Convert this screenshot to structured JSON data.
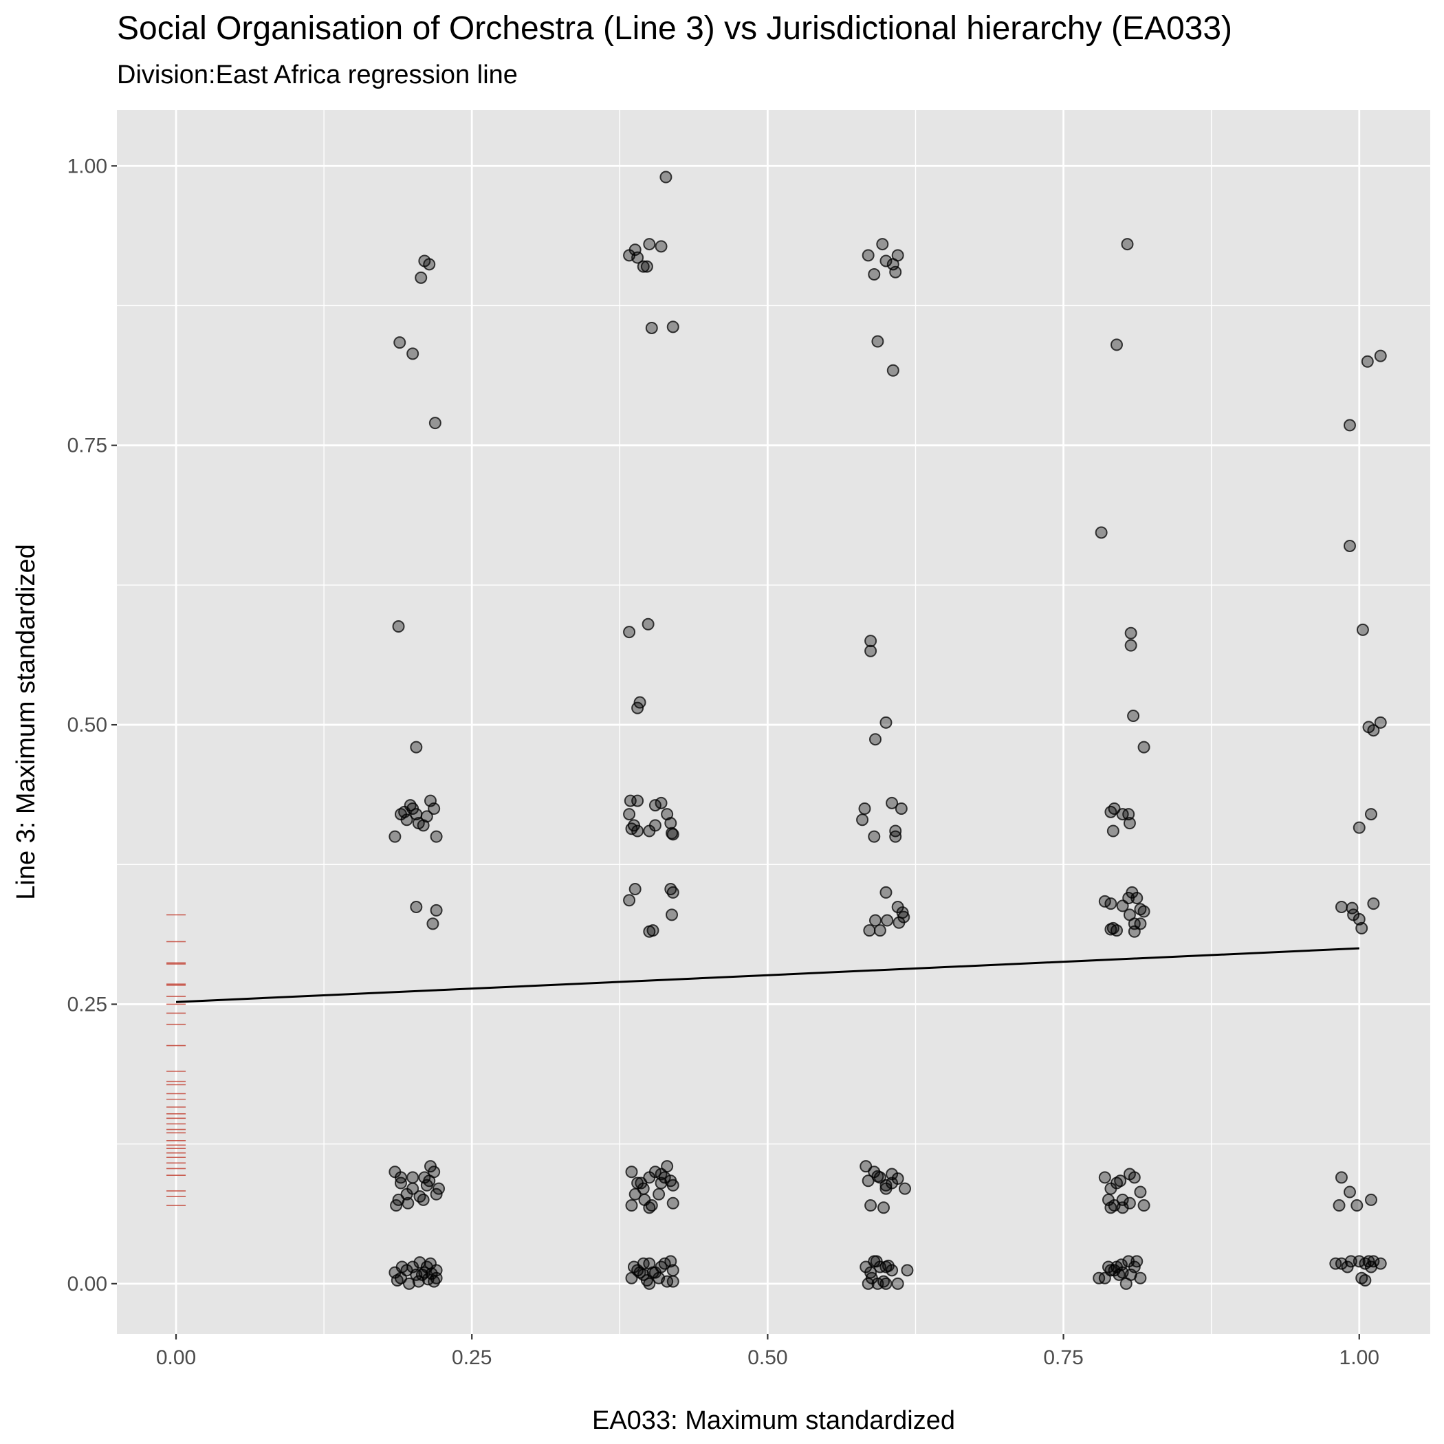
{
  "chart_data": {
    "type": "scatter",
    "title": "Social Organisation of Orchestra (Line 3) vs Jurisdictional hierarchy (EA033)",
    "subtitle": "Division:East Africa regression line",
    "xlabel": "EA033: Maximum standardized",
    "ylabel": "Line 3: Maximum standardized",
    "xlim": [
      -0.05,
      1.06
    ],
    "ylim": [
      -0.045,
      1.05
    ],
    "x_ticks": [
      0,
      0.25,
      0.5,
      0.75,
      1
    ],
    "x_tick_labels": [
      "0.00",
      "0.25",
      "0.50",
      "0.75",
      "1.00"
    ],
    "y_ticks": [
      0,
      0.25,
      0.5,
      0.75,
      1
    ],
    "y_tick_labels": [
      "0.00",
      "0.25",
      "0.50",
      "0.75",
      "1.00"
    ],
    "grid": true,
    "colors": {
      "panel": "#e5e5e5",
      "grid": "#ffffff",
      "points": "#000000",
      "regression": "#000000",
      "rug": "#c0392b"
    },
    "regression_line": {
      "x": [
        0,
        1
      ],
      "y": [
        0.252,
        0.3
      ]
    },
    "rug_y": [
      0.33,
      0.306,
      0.287,
      0.286,
      0.268,
      0.267,
      0.257,
      0.25,
      0.242,
      0.232,
      0.213,
      0.19,
      0.181,
      0.178,
      0.17,
      0.165,
      0.158,
      0.152,
      0.148,
      0.143,
      0.138,
      0.135,
      0.128,
      0.124,
      0.121,
      0.117,
      0.113,
      0.108,
      0.103,
      0.097,
      0.083,
      0.078,
      0.07
    ],
    "points": [
      [
        0.21,
        0.915
      ],
      [
        0.214,
        0.912
      ],
      [
        0.207,
        0.9
      ],
      [
        0.189,
        0.842
      ],
      [
        0.2,
        0.832
      ],
      [
        0.219,
        0.77
      ],
      [
        0.188,
        0.588
      ],
      [
        0.203,
        0.48
      ],
      [
        0.19,
        0.42
      ],
      [
        0.198,
        0.428
      ],
      [
        0.203,
        0.42
      ],
      [
        0.209,
        0.41
      ],
      [
        0.215,
        0.432
      ],
      [
        0.218,
        0.425
      ],
      [
        0.185,
        0.4
      ],
      [
        0.195,
        0.415
      ],
      [
        0.205,
        0.412
      ],
      [
        0.212,
        0.418
      ],
      [
        0.22,
        0.4
      ],
      [
        0.2,
        0.425
      ],
      [
        0.193,
        0.422
      ],
      [
        0.203,
        0.337
      ],
      [
        0.22,
        0.334
      ],
      [
        0.217,
        0.322
      ],
      [
        0.185,
        0.1
      ],
      [
        0.19,
        0.09
      ],
      [
        0.2,
        0.085
      ],
      [
        0.21,
        0.095
      ],
      [
        0.215,
        0.105
      ],
      [
        0.22,
        0.08
      ],
      [
        0.188,
        0.075
      ],
      [
        0.196,
        0.072
      ],
      [
        0.206,
        0.078
      ],
      [
        0.212,
        0.088
      ],
      [
        0.218,
        0.1
      ],
      [
        0.186,
        0.07
      ],
      [
        0.2,
        0.095
      ],
      [
        0.209,
        0.075
      ],
      [
        0.214,
        0.092
      ],
      [
        0.222,
        0.085
      ],
      [
        0.195,
        0.08
      ],
      [
        0.19,
        0.095
      ],
      [
        0.185,
        0.01
      ],
      [
        0.19,
        0.005
      ],
      [
        0.2,
        0.015
      ],
      [
        0.205,
        0.002
      ],
      [
        0.21,
        0.01
      ],
      [
        0.215,
        0.018
      ],
      [
        0.22,
        0.005
      ],
      [
        0.187,
        0.003
      ],
      [
        0.195,
        0.012
      ],
      [
        0.208,
        0.008
      ],
      [
        0.212,
        0.015
      ],
      [
        0.218,
        0.002
      ],
      [
        0.203,
        0.008
      ],
      [
        0.197,
        0.0
      ],
      [
        0.213,
        0.004
      ],
      [
        0.22,
        0.012
      ],
      [
        0.206,
        0.019
      ],
      [
        0.216,
        0.009
      ],
      [
        0.191,
        0.015
      ],
      [
        0.414,
        0.99
      ],
      [
        0.4,
        0.93
      ],
      [
        0.41,
        0.928
      ],
      [
        0.388,
        0.925
      ],
      [
        0.383,
        0.92
      ],
      [
        0.39,
        0.918
      ],
      [
        0.395,
        0.91
      ],
      [
        0.398,
        0.91
      ],
      [
        0.402,
        0.855
      ],
      [
        0.42,
        0.856
      ],
      [
        0.399,
        0.59
      ],
      [
        0.383,
        0.583
      ],
      [
        0.392,
        0.52
      ],
      [
        0.39,
        0.515
      ],
      [
        0.384,
        0.432
      ],
      [
        0.39,
        0.432
      ],
      [
        0.405,
        0.428
      ],
      [
        0.41,
        0.43
      ],
      [
        0.415,
        0.42
      ],
      [
        0.383,
        0.42
      ],
      [
        0.387,
        0.41
      ],
      [
        0.4,
        0.405
      ],
      [
        0.405,
        0.41
      ],
      [
        0.418,
        0.412
      ],
      [
        0.42,
        0.402
      ],
      [
        0.39,
        0.405
      ],
      [
        0.385,
        0.407
      ],
      [
        0.419,
        0.403
      ],
      [
        0.383,
        0.343
      ],
      [
        0.388,
        0.353
      ],
      [
        0.418,
        0.353
      ],
      [
        0.42,
        0.35
      ],
      [
        0.419,
        0.33
      ],
      [
        0.4,
        0.315
      ],
      [
        0.403,
        0.316
      ],
      [
        0.385,
        0.1
      ],
      [
        0.39,
        0.09
      ],
      [
        0.395,
        0.085
      ],
      [
        0.4,
        0.095
      ],
      [
        0.405,
        0.1
      ],
      [
        0.41,
        0.09
      ],
      [
        0.415,
        0.105
      ],
      [
        0.42,
        0.088
      ],
      [
        0.388,
        0.08
      ],
      [
        0.396,
        0.075
      ],
      [
        0.402,
        0.07
      ],
      [
        0.408,
        0.08
      ],
      [
        0.413,
        0.095
      ],
      [
        0.418,
        0.092
      ],
      [
        0.385,
        0.07
      ],
      [
        0.4,
        0.068
      ],
      [
        0.42,
        0.072
      ],
      [
        0.393,
        0.09
      ],
      [
        0.41,
        0.098
      ],
      [
        0.385,
        0.005
      ],
      [
        0.39,
        0.012
      ],
      [
        0.395,
        0.008
      ],
      [
        0.4,
        0.018
      ],
      [
        0.405,
        0.01
      ],
      [
        0.41,
        0.015
      ],
      [
        0.415,
        0.002
      ],
      [
        0.42,
        0.012
      ],
      [
        0.387,
        0.015
      ],
      [
        0.398,
        0.003
      ],
      [
        0.403,
        0.01
      ],
      [
        0.408,
        0.005
      ],
      [
        0.413,
        0.018
      ],
      [
        0.418,
        0.02
      ],
      [
        0.392,
        0.01
      ],
      [
        0.4,
        0.0
      ],
      [
        0.42,
        0.002
      ],
      [
        0.395,
        0.018
      ],
      [
        0.597,
        0.93
      ],
      [
        0.585,
        0.92
      ],
      [
        0.61,
        0.92
      ],
      [
        0.6,
        0.915
      ],
      [
        0.606,
        0.912
      ],
      [
        0.608,
        0.905
      ],
      [
        0.59,
        0.903
      ],
      [
        0.593,
        0.843
      ],
      [
        0.606,
        0.817
      ],
      [
        0.587,
        0.575
      ],
      [
        0.587,
        0.566
      ],
      [
        0.6,
        0.502
      ],
      [
        0.591,
        0.487
      ],
      [
        0.582,
        0.425
      ],
      [
        0.605,
        0.43
      ],
      [
        0.613,
        0.425
      ],
      [
        0.58,
        0.415
      ],
      [
        0.59,
        0.4
      ],
      [
        0.608,
        0.4
      ],
      [
        0.608,
        0.405
      ],
      [
        0.6,
        0.35
      ],
      [
        0.61,
        0.337
      ],
      [
        0.614,
        0.332
      ],
      [
        0.615,
        0.328
      ],
      [
        0.591,
        0.325
      ],
      [
        0.601,
        0.325
      ],
      [
        0.586,
        0.316
      ],
      [
        0.595,
        0.316
      ],
      [
        0.611,
        0.323
      ],
      [
        0.583,
        0.105
      ],
      [
        0.585,
        0.092
      ],
      [
        0.59,
        0.1
      ],
      [
        0.595,
        0.095
      ],
      [
        0.6,
        0.088
      ],
      [
        0.605,
        0.098
      ],
      [
        0.61,
        0.094
      ],
      [
        0.616,
        0.085
      ],
      [
        0.587,
        0.07
      ],
      [
        0.598,
        0.068
      ],
      [
        0.6,
        0.085
      ],
      [
        0.593,
        0.096
      ],
      [
        0.605,
        0.09
      ],
      [
        0.583,
        0.015
      ],
      [
        0.59,
        0.02
      ],
      [
        0.595,
        0.015
      ],
      [
        0.6,
        0.015
      ],
      [
        0.605,
        0.012
      ],
      [
        0.618,
        0.012
      ],
      [
        0.585,
        0.0
      ],
      [
        0.593,
        0.0
      ],
      [
        0.598,
        0.002
      ],
      [
        0.6,
        0.0
      ],
      [
        0.61,
        0.0
      ],
      [
        0.587,
        0.01
      ],
      [
        0.592,
        0.02
      ],
      [
        0.602,
        0.016
      ],
      [
        0.588,
        0.005
      ],
      [
        0.804,
        0.93
      ],
      [
        0.795,
        0.84
      ],
      [
        0.782,
        0.672
      ],
      [
        0.807,
        0.582
      ],
      [
        0.807,
        0.571
      ],
      [
        0.809,
        0.508
      ],
      [
        0.818,
        0.48
      ],
      [
        0.79,
        0.422
      ],
      [
        0.793,
        0.425
      ],
      [
        0.8,
        0.42
      ],
      [
        0.805,
        0.42
      ],
      [
        0.806,
        0.412
      ],
      [
        0.792,
        0.405
      ],
      [
        0.785,
        0.342
      ],
      [
        0.79,
        0.34
      ],
      [
        0.8,
        0.338
      ],
      [
        0.805,
        0.345
      ],
      [
        0.808,
        0.35
      ],
      [
        0.812,
        0.345
      ],
      [
        0.815,
        0.335
      ],
      [
        0.818,
        0.333
      ],
      [
        0.81,
        0.322
      ],
      [
        0.815,
        0.322
      ],
      [
        0.79,
        0.317
      ],
      [
        0.795,
        0.316
      ],
      [
        0.81,
        0.315
      ],
      [
        0.806,
        0.33
      ],
      [
        0.792,
        0.318
      ],
      [
        0.785,
        0.095
      ],
      [
        0.79,
        0.085
      ],
      [
        0.795,
        0.09
      ],
      [
        0.8,
        0.075
      ],
      [
        0.806,
        0.098
      ],
      [
        0.81,
        0.095
      ],
      [
        0.815,
        0.082
      ],
      [
        0.818,
        0.07
      ],
      [
        0.788,
        0.075
      ],
      [
        0.793,
        0.07
      ],
      [
        0.8,
        0.068
      ],
      [
        0.806,
        0.072
      ],
      [
        0.798,
        0.092
      ],
      [
        0.79,
        0.068
      ],
      [
        0.785,
        0.005
      ],
      [
        0.79,
        0.012
      ],
      [
        0.795,
        0.015
      ],
      [
        0.8,
        0.01
      ],
      [
        0.805,
        0.02
      ],
      [
        0.81,
        0.015
      ],
      [
        0.815,
        0.005
      ],
      [
        0.78,
        0.005
      ],
      [
        0.788,
        0.015
      ],
      [
        0.797,
        0.008
      ],
      [
        0.803,
        0.0
      ],
      [
        0.807,
        0.008
      ],
      [
        0.812,
        0.02
      ],
      [
        0.793,
        0.012
      ],
      [
        0.799,
        0.017
      ],
      [
        1.018,
        0.83
      ],
      [
        1.007,
        0.825
      ],
      [
        0.992,
        0.768
      ],
      [
        0.992,
        0.66
      ],
      [
        1.003,
        0.585
      ],
      [
        1.018,
        0.502
      ],
      [
        1.008,
        0.498
      ],
      [
        1.012,
        0.495
      ],
      [
        1.01,
        0.42
      ],
      [
        1.0,
        0.408
      ],
      [
        1.012,
        0.34
      ],
      [
        0.985,
        0.337
      ],
      [
        0.994,
        0.336
      ],
      [
        0.995,
        0.33
      ],
      [
        1.0,
        0.326
      ],
      [
        1.002,
        0.318
      ],
      [
        0.985,
        0.095
      ],
      [
        0.992,
        0.082
      ],
      [
        1.01,
        0.075
      ],
      [
        0.983,
        0.07
      ],
      [
        0.998,
        0.07
      ],
      [
        0.98,
        0.018
      ],
      [
        0.985,
        0.018
      ],
      [
        0.993,
        0.02
      ],
      [
        1.0,
        0.02
      ],
      [
        1.005,
        0.018
      ],
      [
        1.012,
        0.02
      ],
      [
        1.018,
        0.018
      ],
      [
        1.002,
        0.005
      ],
      [
        1.005,
        0.003
      ],
      [
        1.01,
        0.015
      ],
      [
        0.99,
        0.015
      ],
      [
        1.008,
        0.02
      ]
    ]
  }
}
